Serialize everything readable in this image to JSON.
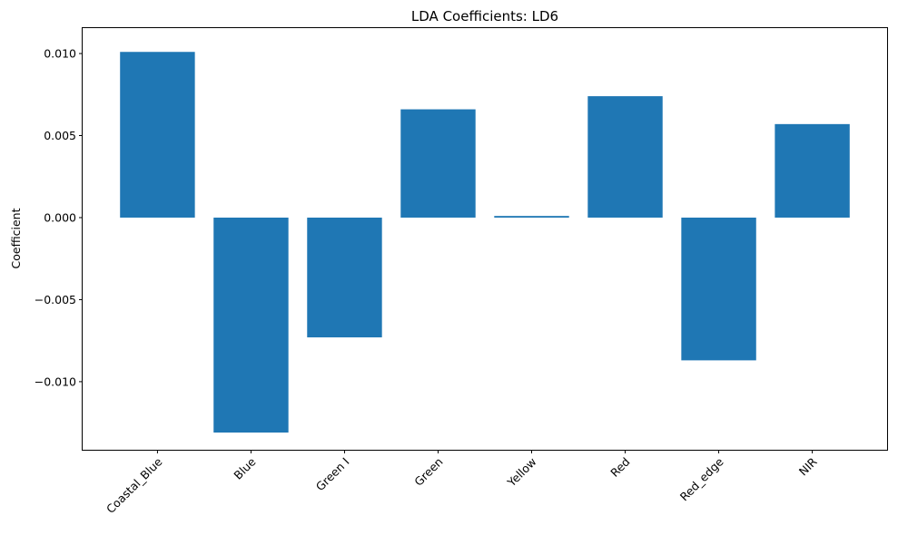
{
  "chart_data": {
    "type": "bar",
    "title": "LDA Coefficients: LD6",
    "xlabel": "",
    "ylabel": "Coefficient",
    "categories": [
      "Coastal_Blue",
      "Blue",
      "Green I",
      "Green",
      "Yellow",
      "Red",
      "Red_edge",
      "NIR"
    ],
    "values": [
      0.0101,
      -0.0131,
      -0.0073,
      0.0066,
      0.0001,
      0.0074,
      -0.0087,
      0.0057
    ],
    "ylim": [
      -0.01415,
      0.01155
    ],
    "yticks": [
      0.01,
      0.005,
      0.0,
      -0.005,
      -0.01
    ],
    "ytick_labels": [
      "0.010",
      "0.005",
      "0.000",
      "−0.005",
      "−0.010"
    ],
    "bar_color": "#1f77b4",
    "grid": false,
    "legend": "none"
  }
}
